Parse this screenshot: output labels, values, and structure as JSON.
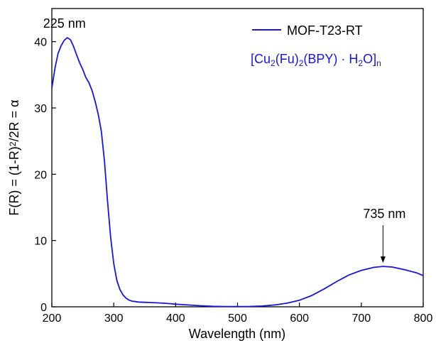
{
  "chart_data": {
    "type": "line",
    "xlabel": "Wavelength (nm)",
    "ylabel": {
      "parts": [
        {
          "t": "F(R) = (1-R)",
          "s": "n"
        },
        {
          "t": "2",
          "s": "sup"
        },
        {
          "t": "/2R = α",
          "s": "n"
        }
      ]
    },
    "xlim": [
      200,
      800
    ],
    "ylim": [
      0,
      45
    ],
    "xticks": [
      "200",
      "300",
      "400",
      "500",
      "600",
      "700",
      "800"
    ],
    "yticks": [
      "0",
      "10",
      "20",
      "30",
      "40"
    ],
    "grid": false,
    "legend": {
      "placement": "top-right",
      "label": "MOF-T23-RT",
      "formula": [
        {
          "t": "[Cu",
          "s": "n"
        },
        {
          "t": "2",
          "s": "sub"
        },
        {
          "t": "(Fu)",
          "s": "n"
        },
        {
          "t": "2",
          "s": "sub"
        },
        {
          "t": "(BPY) · H",
          "s": "n"
        },
        {
          "t": "2",
          "s": "sub"
        },
        {
          "t": "O]",
          "s": "n"
        },
        {
          "t": "n",
          "s": "sub"
        }
      ]
    },
    "annotations": [
      {
        "text": "225 nm",
        "x": 225,
        "y": 40.6,
        "arrow": false
      },
      {
        "text": "735 nm",
        "x": 735,
        "y": 6.1,
        "arrow": true
      }
    ],
    "colors": {
      "series": "#1515e6",
      "axis": "#000000"
    },
    "series": [
      {
        "name": "MOF-T23-RT",
        "x": [
          200,
          205,
          210,
          215,
          220,
          225,
          230,
          235,
          240,
          245,
          250,
          255,
          260,
          265,
          270,
          275,
          280,
          285,
          290,
          295,
          300,
          305,
          310,
          315,
          320,
          325,
          330,
          335,
          340,
          350,
          360,
          370,
          380,
          390,
          400,
          420,
          440,
          460,
          480,
          500,
          520,
          540,
          560,
          580,
          600,
          620,
          640,
          660,
          680,
          700,
          720,
          735,
          750,
          770,
          790,
          800
        ],
        "y": [
          33.0,
          36.0,
          38.2,
          39.4,
          40.2,
          40.6,
          40.3,
          39.3,
          38.0,
          36.8,
          35.8,
          34.6,
          33.8,
          32.6,
          31.0,
          29.0,
          26.5,
          22.0,
          16.0,
          10.5,
          6.5,
          4.0,
          2.6,
          1.8,
          1.3,
          1.0,
          0.85,
          0.78,
          0.72,
          0.68,
          0.64,
          0.6,
          0.55,
          0.48,
          0.4,
          0.28,
          0.16,
          0.08,
          0.04,
          0.03,
          0.05,
          0.12,
          0.28,
          0.55,
          1.0,
          1.7,
          2.7,
          3.8,
          4.8,
          5.5,
          5.95,
          6.1,
          6.0,
          5.6,
          5.1,
          4.7
        ]
      }
    ]
  }
}
